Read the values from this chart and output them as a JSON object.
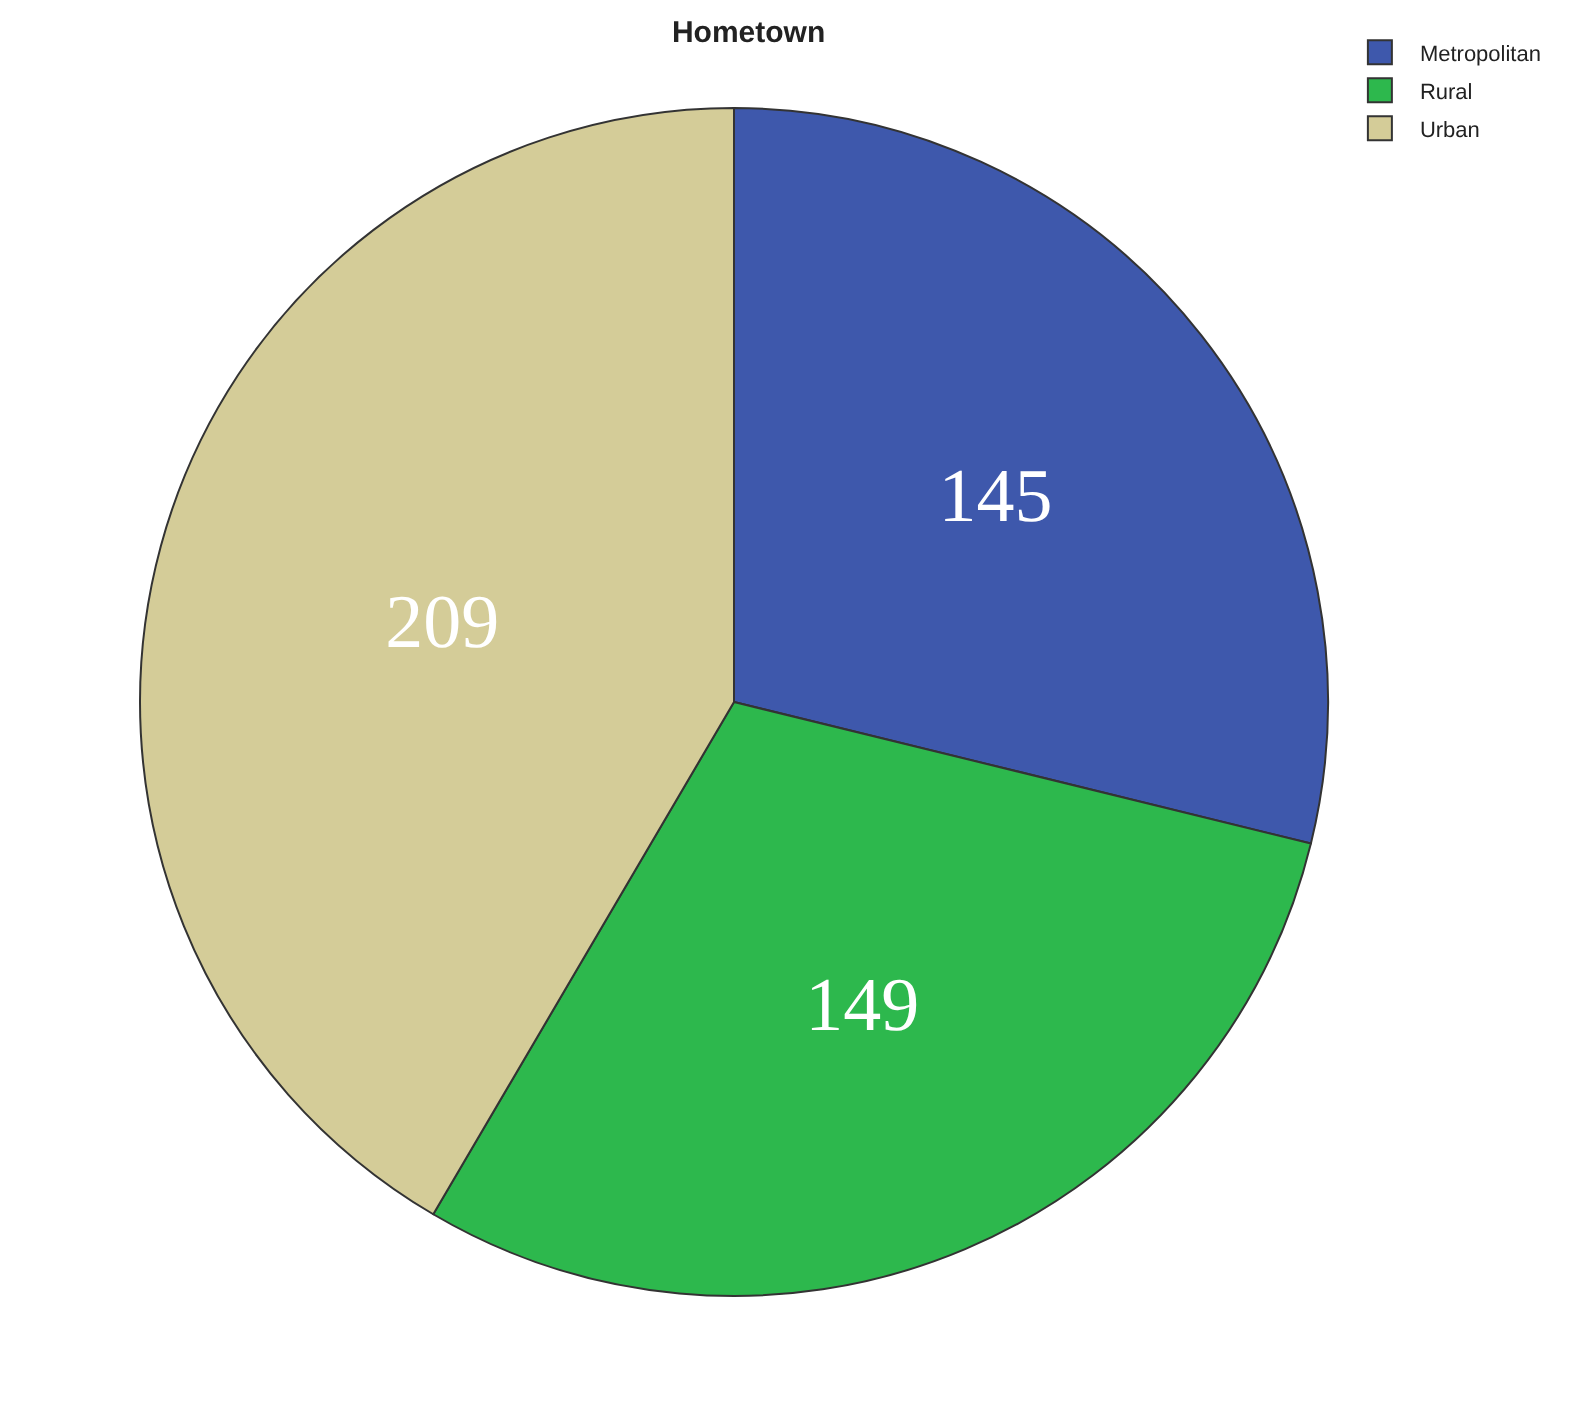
{
  "chart_data": {
    "type": "pie",
    "title": "Hometown",
    "categories": [
      "Metropolitan",
      "Rural",
      "Urban"
    ],
    "values": [
      145,
      149,
      209
    ],
    "colors": [
      "#3e58ac",
      "#2db84d",
      "#d4cc98"
    ],
    "data_labels": true,
    "legend": "top right"
  }
}
